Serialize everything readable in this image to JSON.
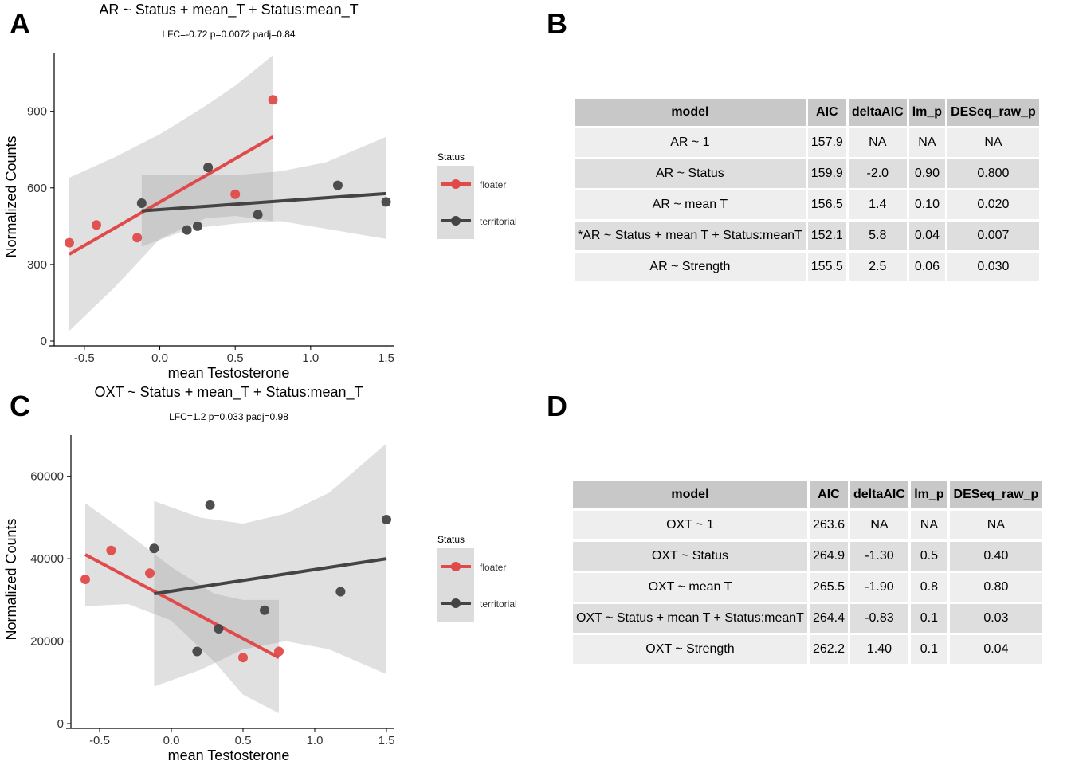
{
  "panels": {
    "A": "A",
    "B": "B",
    "C": "C",
    "D": "D"
  },
  "chart_data": [
    {
      "panel": "A",
      "type": "scatter",
      "title": "AR ~ Status + mean_T + Status:mean_T",
      "subtitle": "LFC=-0.72 p=0.0072 padj=0.84",
      "xlabel": "mean Testosterone",
      "ylabel": "Normalized Counts",
      "xlim": [
        -0.7,
        1.55
      ],
      "ylim": [
        0,
        1130
      ],
      "xticks": [
        -0.5,
        0.0,
        0.5,
        1.0,
        1.5
      ],
      "xtick_labels": [
        "-0.5",
        "0.0",
        "0.5",
        "1.0",
        "1.5"
      ],
      "yticks": [
        0,
        300,
        600,
        900
      ],
      "ytick_labels": [
        "0",
        "300",
        "600",
        "900"
      ],
      "legend": {
        "title": "Status",
        "position": "right",
        "entries": [
          "floater",
          "territorial"
        ]
      },
      "series": [
        {
          "name": "floater",
          "color": "#e04a4a",
          "points": [
            [
              -0.6,
              385
            ],
            [
              -0.42,
              455
            ],
            [
              -0.15,
              405
            ],
            [
              0.5,
              575
            ],
            [
              0.75,
              945
            ]
          ],
          "fit": [
            [
              -0.6,
              340
            ],
            [
              0.75,
              800
            ]
          ],
          "ci_upper": [
            [
              -0.6,
              640
            ],
            [
              -0.3,
              720
            ],
            [
              0.0,
              810
            ],
            [
              0.3,
              920
            ],
            [
              0.5,
              1000
            ],
            [
              0.75,
              1120
            ]
          ],
          "ci_lower": [
            [
              -0.6,
              40
            ],
            [
              -0.3,
              210
            ],
            [
              0.0,
              400
            ],
            [
              0.3,
              480
            ],
            [
              0.5,
              490
            ],
            [
              0.75,
              470
            ]
          ]
        },
        {
          "name": "territorial",
          "color": "#444444",
          "points": [
            [
              -0.12,
              540
            ],
            [
              0.18,
              435
            ],
            [
              0.25,
              450
            ],
            [
              0.32,
              680
            ],
            [
              0.65,
              495
            ],
            [
              1.18,
              610
            ],
            [
              1.5,
              545
            ]
          ],
          "fit": [
            [
              -0.12,
              510
            ],
            [
              1.5,
              578
            ]
          ],
          "ci_upper": [
            [
              -0.12,
              650
            ],
            [
              0.2,
              650
            ],
            [
              0.5,
              650
            ],
            [
              0.8,
              665
            ],
            [
              1.1,
              700
            ],
            [
              1.5,
              800
            ]
          ],
          "ci_lower": [
            [
              -0.12,
              370
            ],
            [
              0.2,
              440
            ],
            [
              0.5,
              460
            ],
            [
              0.8,
              470
            ],
            [
              1.1,
              440
            ],
            [
              1.5,
              400
            ]
          ]
        }
      ]
    },
    {
      "panel": "C",
      "type": "scatter",
      "title": "OXT ~ Status + mean_T + Status:mean_T",
      "subtitle": "LFC=1.2 p=0.033 padj=0.98",
      "xlabel": "mean Testosterone",
      "ylabel": "Normalized Counts",
      "xlim": [
        -0.7,
        1.55
      ],
      "ylim": [
        0,
        70000
      ],
      "xticks": [
        -0.5,
        0.0,
        0.5,
        1.0,
        1.5
      ],
      "xtick_labels": [
        "-0.5",
        "0.0",
        "0.5",
        "1.0",
        "1.5"
      ],
      "yticks": [
        0,
        20000,
        40000,
        60000
      ],
      "ytick_labels": [
        "0",
        "20000",
        "40000",
        "60000"
      ],
      "legend": {
        "title": "Status",
        "position": "right",
        "entries": [
          "floater",
          "territorial"
        ]
      },
      "series": [
        {
          "name": "floater",
          "color": "#e04a4a",
          "points": [
            [
              -0.6,
              35000
            ],
            [
              -0.42,
              42000
            ],
            [
              -0.15,
              36500
            ],
            [
              0.5,
              16000
            ],
            [
              0.75,
              17500
            ]
          ],
          "fit": [
            [
              -0.6,
              41000
            ],
            [
              0.75,
              16000
            ]
          ],
          "ci_upper": [
            [
              -0.6,
              53500
            ],
            [
              -0.3,
              46000
            ],
            [
              0.0,
              38000
            ],
            [
              0.3,
              31500
            ],
            [
              0.5,
              30000
            ],
            [
              0.75,
              30000
            ]
          ],
          "ci_lower": [
            [
              -0.6,
              28500
            ],
            [
              -0.3,
              29000
            ],
            [
              0.0,
              25000
            ],
            [
              0.3,
              15000
            ],
            [
              0.5,
              7000
            ],
            [
              0.75,
              2500
            ]
          ]
        },
        {
          "name": "territorial",
          "color": "#444444",
          "points": [
            [
              -0.12,
              42500
            ],
            [
              0.18,
              17500
            ],
            [
              0.27,
              53000
            ],
            [
              0.33,
              23000
            ],
            [
              0.65,
              27500
            ],
            [
              1.18,
              32000
            ],
            [
              1.5,
              49500
            ]
          ],
          "fit": [
            [
              -0.12,
              31500
            ],
            [
              1.5,
              40000
            ]
          ],
          "ci_upper": [
            [
              -0.12,
              54000
            ],
            [
              0.2,
              50000
            ],
            [
              0.5,
              48500
            ],
            [
              0.8,
              51000
            ],
            [
              1.1,
              56000
            ],
            [
              1.5,
              68000
            ]
          ],
          "ci_lower": [
            [
              -0.12,
              9000
            ],
            [
              0.2,
              13000
            ],
            [
              0.5,
              18000
            ],
            [
              0.8,
              20000
            ],
            [
              1.1,
              18000
            ],
            [
              1.5,
              12000
            ]
          ]
        }
      ]
    }
  ],
  "table_b": {
    "headers": [
      "model",
      "AIC",
      "deltaAIC",
      "lm_p",
      "DESeq_raw_p"
    ],
    "rows": [
      [
        "AR ~ 1",
        "157.9",
        "NA",
        "NA",
        "NA"
      ],
      [
        "AR ~ Status",
        "159.9",
        "-2.0",
        "0.90",
        "0.800"
      ],
      [
        "AR ~ mean T",
        "156.5",
        "1.4",
        "0.10",
        "0.020"
      ],
      [
        "*AR ~ Status + mean T + Status:meanT",
        "152.1",
        "5.8",
        "0.04",
        "0.007"
      ],
      [
        "AR ~ Strength",
        "155.5",
        "2.5",
        "0.06",
        "0.030"
      ]
    ]
  },
  "table_d": {
    "headers": [
      "model",
      "AIC",
      "deltaAIC",
      "lm_p",
      "DESeq_raw_p"
    ],
    "rows": [
      [
        "OXT ~ 1",
        "263.6",
        "NA",
        "NA",
        "NA"
      ],
      [
        "OXT ~ Status",
        "264.9",
        "-1.30",
        "0.5",
        "0.40"
      ],
      [
        "OXT ~ mean T",
        "265.5",
        "-1.90",
        "0.8",
        "0.80"
      ],
      [
        "OXT ~ Status + mean T + Status:meanT",
        "264.4",
        "-0.83",
        "0.1",
        "0.03"
      ],
      [
        "OXT ~ Strength",
        "262.2",
        "1.40",
        "0.1",
        "0.04"
      ]
    ]
  }
}
